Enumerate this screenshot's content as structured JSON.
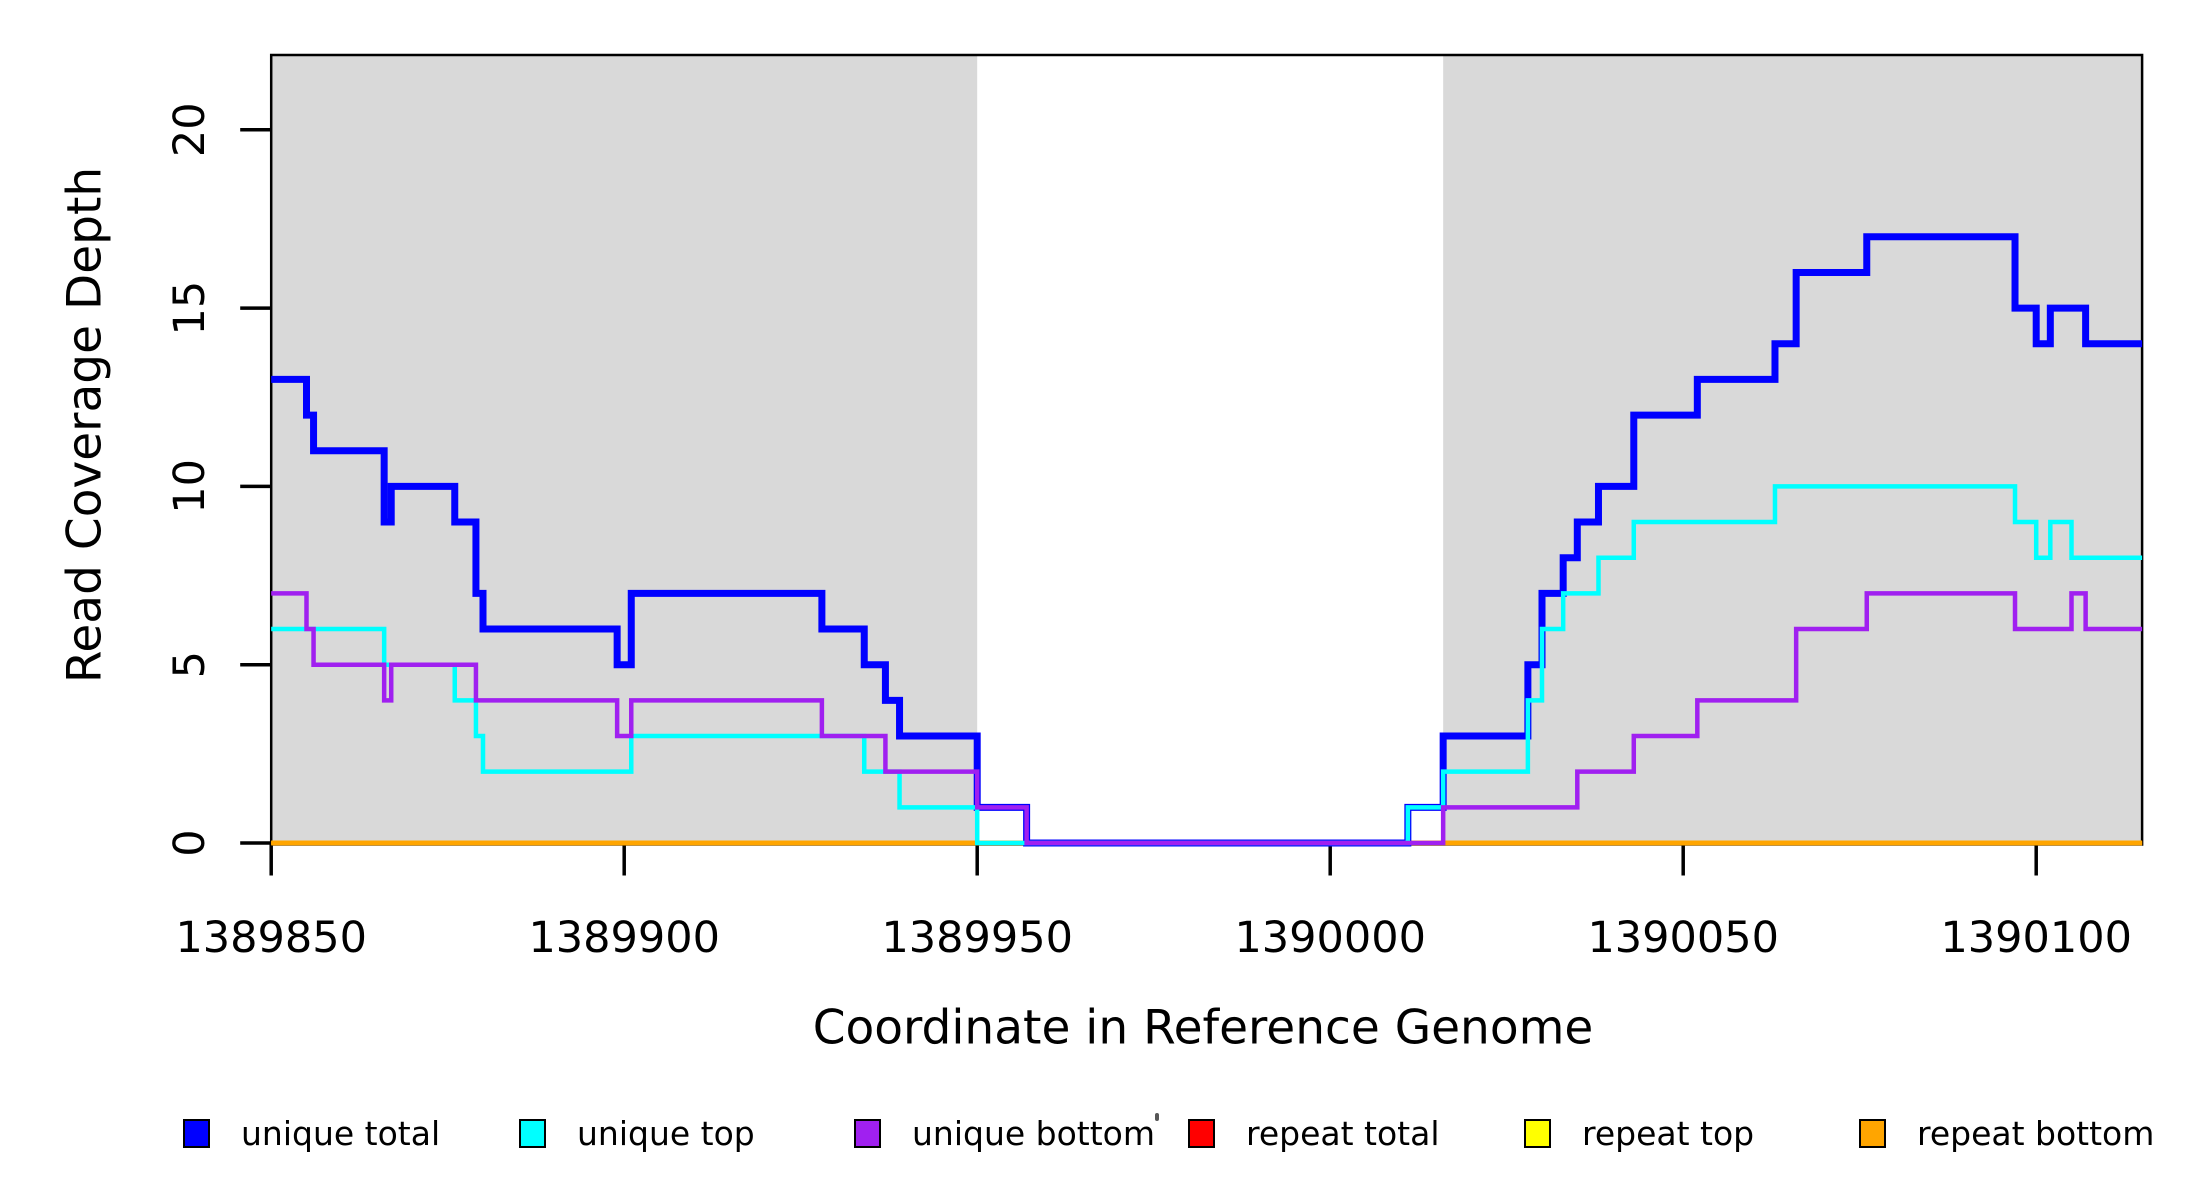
{
  "chart_data": {
    "type": "step",
    "title": "",
    "xlabel": "Coordinate in Reference Genome",
    "ylabel": "Read Coverage Depth",
    "xlim": [
      1389850,
      1390115
    ],
    "ylim": [
      0,
      22
    ],
    "grid": false,
    "background_color": "#ffffff",
    "box_color": "#000000",
    "shade_color": "#d9d9d9",
    "x_ticks": [
      1389850,
      1389900,
      1389950,
      1390000,
      1390050,
      1390100
    ],
    "x_tick_labels": [
      "1389850",
      "1389900",
      "1389950",
      "1390000",
      "1390050",
      "1390100"
    ],
    "y_ticks": [
      0,
      5,
      10,
      15,
      20
    ],
    "y_tick_labels": [
      "0",
      "5",
      "10",
      "15",
      "20"
    ],
    "shaded_regions": [
      {
        "x_start": 1389850,
        "x_end": 1389950
      },
      {
        "x_start": 1390016,
        "x_end": 1390115
      }
    ],
    "series": [
      {
        "name": "unique total",
        "color": "#0000ff",
        "stroke_width": 7,
        "z": 4,
        "steps": [
          [
            1389850,
            13
          ],
          [
            1389855,
            12
          ],
          [
            1389856,
            11
          ],
          [
            1389866,
            9
          ],
          [
            1389867,
            10
          ],
          [
            1389876,
            9
          ],
          [
            1389879,
            7
          ],
          [
            1389880,
            6
          ],
          [
            1389899,
            5
          ],
          [
            1389901,
            7
          ],
          [
            1389928,
            6
          ],
          [
            1389934,
            5
          ],
          [
            1389937,
            4
          ],
          [
            1389939,
            3
          ],
          [
            1389950,
            1
          ],
          [
            1389957,
            0
          ],
          [
            1390011,
            1
          ],
          [
            1390016,
            3
          ],
          [
            1390028,
            5
          ],
          [
            1390030,
            7
          ],
          [
            1390033,
            8
          ],
          [
            1390035,
            9
          ],
          [
            1390038,
            10
          ],
          [
            1390043,
            12
          ],
          [
            1390052,
            13
          ],
          [
            1390063,
            14
          ],
          [
            1390066,
            16
          ],
          [
            1390076,
            17
          ],
          [
            1390097,
            15
          ],
          [
            1390100,
            14
          ],
          [
            1390102,
            15
          ],
          [
            1390107,
            14
          ]
        ]
      },
      {
        "name": "unique top",
        "color": "#00ffff",
        "stroke_width": 4.5,
        "z": 5,
        "steps": [
          [
            1389850,
            6
          ],
          [
            1389866,
            5
          ],
          [
            1389876,
            4
          ],
          [
            1389879,
            3
          ],
          [
            1389880,
            2
          ],
          [
            1389901,
            3
          ],
          [
            1389934,
            2
          ],
          [
            1389939,
            1
          ],
          [
            1389950,
            0
          ],
          [
            1390011,
            1
          ],
          [
            1390016,
            2
          ],
          [
            1390028,
            4
          ],
          [
            1390030,
            6
          ],
          [
            1390033,
            7
          ],
          [
            1390038,
            8
          ],
          [
            1390043,
            9
          ],
          [
            1390063,
            10
          ],
          [
            1390097,
            9
          ],
          [
            1390100,
            8
          ],
          [
            1390102,
            9
          ],
          [
            1390105,
            8
          ]
        ]
      },
      {
        "name": "unique bottom",
        "color": "#a020f0",
        "stroke_width": 4.5,
        "z": 6,
        "steps": [
          [
            1389850,
            7
          ],
          [
            1389855,
            6
          ],
          [
            1389856,
            5
          ],
          [
            1389866,
            4
          ],
          [
            1389867,
            5
          ],
          [
            1389879,
            4
          ],
          [
            1389899,
            3
          ],
          [
            1389901,
            4
          ],
          [
            1389928,
            3
          ],
          [
            1389937,
            2
          ],
          [
            1389950,
            1
          ],
          [
            1389957,
            0
          ],
          [
            1390016,
            1
          ],
          [
            1390035,
            2
          ],
          [
            1390043,
            3
          ],
          [
            1390052,
            4
          ],
          [
            1390066,
            6
          ],
          [
            1390076,
            7
          ],
          [
            1390097,
            6
          ],
          [
            1390105,
            7
          ],
          [
            1390107,
            6
          ]
        ]
      },
      {
        "name": "repeat total",
        "color": "#ff0000",
        "stroke_width": 3.5,
        "z": 1,
        "steps": [
          [
            1389850,
            0
          ]
        ]
      },
      {
        "name": "repeat top",
        "color": "#ffff00",
        "stroke_width": 3.5,
        "z": 2,
        "steps": [
          [
            1389850,
            0
          ]
        ]
      },
      {
        "name": "repeat bottom",
        "color": "#ffa500",
        "stroke_width": 5,
        "z": 3,
        "steps": [
          [
            1389850,
            0
          ]
        ]
      }
    ],
    "legend": {
      "position": "bottom",
      "entries": [
        {
          "label": "unique total",
          "color": "#0000ff"
        },
        {
          "label": "unique top",
          "color": "#00ffff"
        },
        {
          "label": "unique bottom",
          "color": "#a020f0"
        },
        {
          "label": "repeat total",
          "color": "#ff0000"
        },
        {
          "label": "repeat top",
          "color": "#ffff00"
        },
        {
          "label": "repeat bottom",
          "color": "#ffa500"
        }
      ]
    }
  }
}
